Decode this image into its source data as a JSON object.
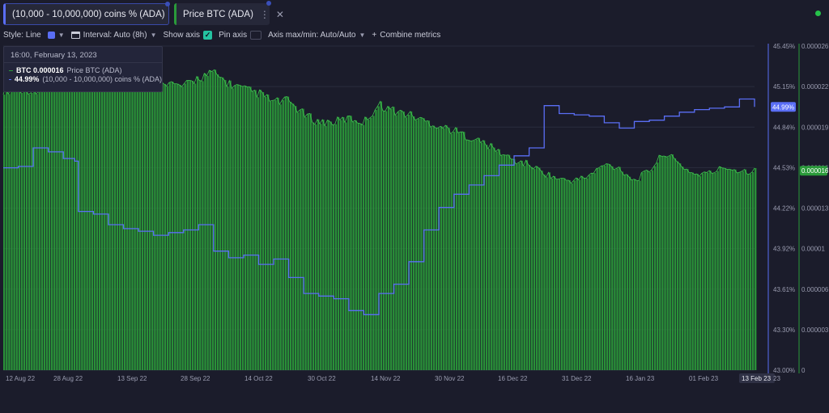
{
  "tabs": [
    {
      "label": "(10,000 - 10,000,000) coins % (ADA)",
      "color": "#5a6ef5"
    },
    {
      "label": "Price BTC (ADA)",
      "color": "#2a9a3a"
    }
  ],
  "toolbar": {
    "style_label": "Style: Line",
    "interval_label": "Interval: Auto (8h)",
    "show_axis_label": "Show axis",
    "pin_axis_label": "Pin axis",
    "axis_minmax_label": "Axis max/min: Auto/Auto",
    "combine_label": "Combine metrics"
  },
  "tooltip": {
    "date": "16:00, February 13, 2023",
    "rows": [
      {
        "value": "BTC 0.000016",
        "name": "Price BTC (ADA)",
        "color": "#2a9a3a"
      },
      {
        "value": "44.99%",
        "name": "(10,000 - 10,000,000) coins % (ADA)",
        "color": "#5a6ef5"
      }
    ]
  },
  "chart_data": {
    "type": "line",
    "x_ticks": [
      "12 Aug 22",
      "28 Aug 22",
      "13 Sep 22",
      "28 Sep 22",
      "14 Oct 22",
      "30 Oct 22",
      "14 Nov 22",
      "30 Nov 22",
      "16 Dec 22",
      "31 Dec 22",
      "16 Jan 23",
      "01 Feb 23",
      "13 Feb 23"
    ],
    "x_label_last_partial": "23",
    "left_axis": {
      "ticks": [
        "45.45%",
        "45.15%",
        "44.84%",
        "44.53%",
        "44.22%",
        "43.92%",
        "43.61%",
        "43.30%",
        "43.00%"
      ],
      "range": [
        43.0,
        45.45
      ],
      "current": "44.99%",
      "color": "#5a6ef5"
    },
    "right_axis": {
      "ticks": [
        "0.000026",
        "0.000022",
        "0.000019",
        "0.000016",
        "0.000013",
        "0.00001",
        "0.000006",
        "0.000003",
        "0"
      ],
      "range": [
        0,
        2.6e-05
      ],
      "current": "0.000016",
      "color": "#2a9a3a"
    },
    "series": [
      {
        "name": "Price BTC (ADA)",
        "style": "bars",
        "color": "#2a9a3a",
        "x": [
          0.0,
          0.04,
          0.08,
          0.12,
          0.16,
          0.2,
          0.22,
          0.24,
          0.26,
          0.28,
          0.3,
          0.32,
          0.34,
          0.36,
          0.38,
          0.4,
          0.42,
          0.44,
          0.46,
          0.48,
          0.5,
          0.52,
          0.54,
          0.56,
          0.58,
          0.6,
          0.62,
          0.64,
          0.66,
          0.68,
          0.7,
          0.72,
          0.74,
          0.76,
          0.78,
          0.8,
          0.82,
          0.84,
          0.86,
          0.88,
          0.9,
          0.92,
          0.94,
          0.96,
          0.98,
          1.0
        ],
        "values": [
          2.25e-05,
          2.25e-05,
          2.3e-05,
          2.32e-05,
          2.34e-05,
          2.4e-05,
          2.3e-05,
          2.27e-05,
          2.35e-05,
          2.38e-05,
          2.3e-05,
          2.25e-05,
          2.22e-05,
          2.15e-05,
          2.16e-05,
          2.05e-05,
          1.99e-05,
          1.99e-05,
          2.02e-05,
          1.99e-05,
          2.13e-05,
          2.08e-05,
          2.05e-05,
          2e-05,
          1.96e-05,
          1.92e-05,
          1.87e-05,
          1.82e-05,
          1.75e-05,
          1.68e-05,
          1.65e-05,
          1.58e-05,
          1.53e-05,
          1.52e-05,
          1.56e-05,
          1.65e-05,
          1.62e-05,
          1.52e-05,
          1.6e-05,
          1.75e-05,
          1.65e-05,
          1.57e-05,
          1.58e-05,
          1.63e-05,
          1.6e-05,
          1.6e-05
        ]
      },
      {
        "name": "(10,000 - 10,000,000) coins % (ADA)",
        "style": "line",
        "color": "#5a6ef5",
        "x": [
          0.0,
          0.02,
          0.04,
          0.06,
          0.08,
          0.095,
          0.1,
          0.12,
          0.14,
          0.16,
          0.18,
          0.2,
          0.22,
          0.24,
          0.26,
          0.28,
          0.3,
          0.32,
          0.34,
          0.36,
          0.38,
          0.4,
          0.42,
          0.44,
          0.46,
          0.48,
          0.5,
          0.52,
          0.54,
          0.56,
          0.58,
          0.6,
          0.62,
          0.64,
          0.66,
          0.68,
          0.7,
          0.72,
          0.74,
          0.76,
          0.78,
          0.8,
          0.82,
          0.84,
          0.86,
          0.88,
          0.9,
          0.92,
          0.94,
          0.96,
          0.98,
          1.0
        ],
        "values": [
          44.53,
          44.54,
          44.68,
          44.65,
          44.6,
          44.58,
          44.2,
          44.18,
          44.1,
          44.07,
          44.05,
          44.02,
          44.04,
          44.06,
          44.1,
          43.9,
          43.85,
          43.87,
          43.8,
          43.84,
          43.7,
          43.58,
          43.56,
          43.54,
          43.45,
          43.42,
          43.58,
          43.65,
          43.82,
          44.06,
          44.23,
          44.33,
          44.4,
          44.47,
          44.55,
          44.62,
          44.68,
          45.0,
          44.94,
          44.93,
          44.92,
          44.87,
          44.83,
          44.88,
          44.89,
          44.92,
          44.95,
          44.97,
          44.98,
          44.99,
          45.05,
          44.99
        ]
      }
    ]
  }
}
